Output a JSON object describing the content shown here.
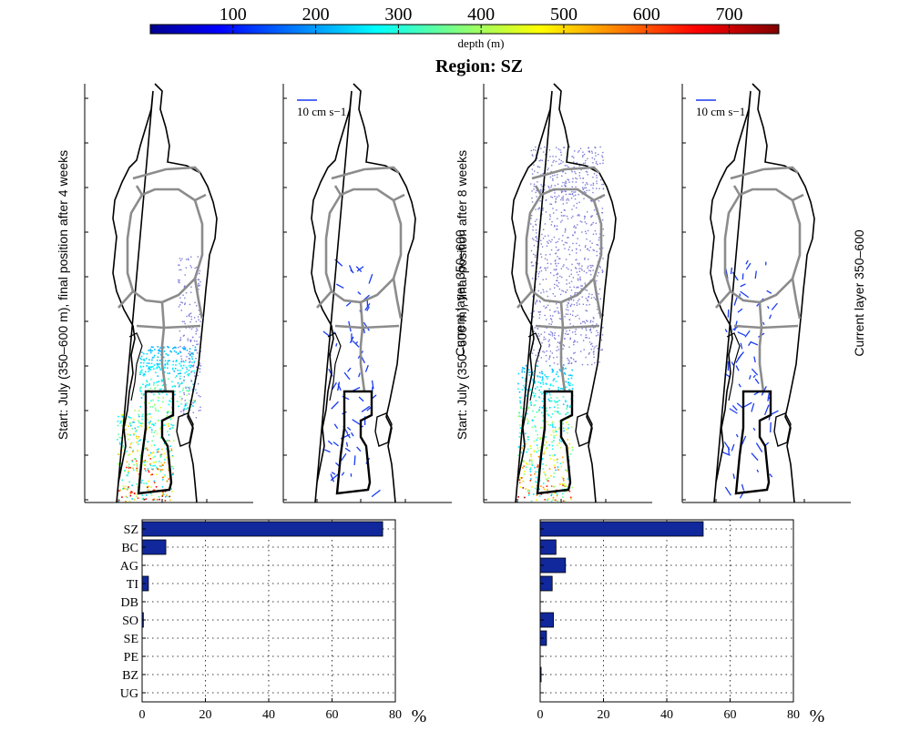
{
  "colorbar": {
    "label": "depth (m)",
    "ticks": [
      "100",
      "200",
      "300",
      "400",
      "500",
      "600",
      "700"
    ],
    "range": [
      0,
      760
    ]
  },
  "title": "Region: SZ",
  "map_panels": [
    {
      "side_label": "Start: July (350–600 m), final position after 4 weeks",
      "scale_label": ""
    },
    {
      "side_label": "Current layer 350–600",
      "scale_label": "10 cm s−1"
    },
    {
      "side_label": "Start: July (350–600 m), final position after 8 weeks",
      "scale_label": ""
    },
    {
      "side_label": "Current layer 350–600",
      "scale_label": "10 cm s−1"
    }
  ],
  "colors": {
    "bar": "#10289c",
    "map_outline": "#000000",
    "region_lines": "#8c8c8c",
    "particles_8wk": "#7b7bd6",
    "vectors": "#1a3cf0"
  },
  "chart_data": [
    {
      "type": "bar",
      "orientation": "horizontal",
      "categories": [
        "SZ",
        "BC",
        "AG",
        "TI",
        "DB",
        "SO",
        "SE",
        "PE",
        "BZ",
        "UG"
      ],
      "values": [
        76,
        7.5,
        0,
        2,
        0,
        0.4,
        0,
        0,
        0,
        0
      ],
      "xlabel": "%",
      "xlim": [
        0,
        80
      ],
      "xticks": [
        "0",
        "20",
        "40",
        "60",
        "80"
      ],
      "grid": true
    },
    {
      "type": "bar",
      "orientation": "horizontal",
      "categories": [
        "SZ",
        "BC",
        "AG",
        "TI",
        "DB",
        "SO",
        "SE",
        "PE",
        "BZ",
        "UG"
      ],
      "values": [
        51.5,
        5,
        8,
        3.8,
        0,
        4.2,
        2,
        0,
        0.3,
        0
      ],
      "xlabel": "%",
      "xlim": [
        0,
        80
      ],
      "xticks": [
        "0",
        "20",
        "40",
        "60",
        "80"
      ],
      "grid": true
    }
  ]
}
